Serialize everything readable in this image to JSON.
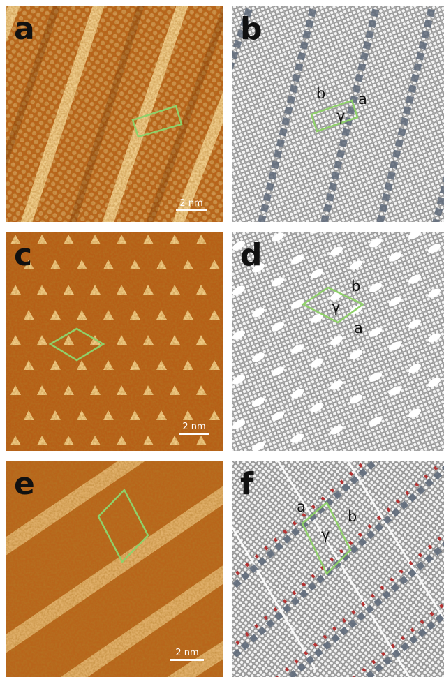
{
  "panels": {
    "a": {
      "letter": "a",
      "scale": "2 nm"
    },
    "b": {
      "letter": "b",
      "axis_b": "b",
      "axis_a": "a",
      "angle": "γ"
    },
    "c": {
      "letter": "c",
      "scale": "2 nm"
    },
    "d": {
      "letter": "d",
      "axis_b": "b",
      "axis_a": "a",
      "angle": "γ"
    },
    "e": {
      "letter": "e",
      "scale": "2 nm"
    },
    "f": {
      "letter": "f",
      "axis_a": "a",
      "axis_b": "b",
      "angle": "γ"
    }
  },
  "colors": {
    "stm_dark": "#7a3a06",
    "stm_mid": "#c2701f",
    "stm_light": "#f3cf86",
    "unit_cell": "#8fd16a",
    "model_bg": "#8e8e8e",
    "model_atom": "#f2f2f2",
    "node": "#5f6a7a",
    "oxygen": "#b22222"
  }
}
